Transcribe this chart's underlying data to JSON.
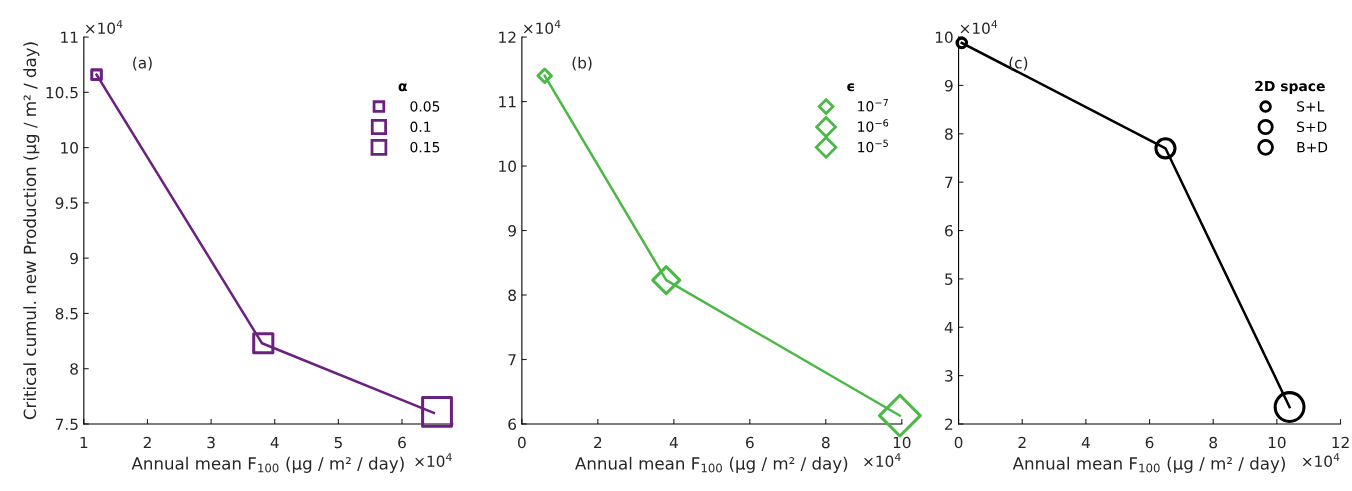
{
  "chart_data": [
    {
      "type": "line",
      "xlabel": "Annual mean F$_{100}$ (μg / m² / day)",
      "ylabel": "Critical cumul. new Production (μg / m² / day)",
      "legend_title": "α",
      "legend": "top right",
      "annotations": [
        "(a)",
        "×10$^{4}$",
        "×10$^{4}$"
      ],
      "xlim": [
        1,
        6.8
      ],
      "xticks": [
        1,
        2,
        3,
        4,
        5,
        6
      ],
      "ylim": [
        7.5,
        11
      ],
      "yticks": [
        7.5,
        8,
        8.5,
        9,
        9.5,
        10,
        10.5,
        11
      ],
      "series": [
        {
          "color": "#6b2180",
          "x": [
            1.2,
            3.8,
            6.5
          ],
          "values": [
            10.66,
            8.23,
            7.6
          ]
        },
        {
          "type": "bubble",
          "name": "0.05",
          "color": "#6b2180",
          "marker": "square",
          "x": [
            1.2
          ],
          "values": [
            10.66
          ],
          "sizes": [
            0.11
          ]
        },
        {
          "type": "bubble",
          "name": "0.1",
          "color": "#6b2180",
          "marker": "square",
          "x": [
            3.82
          ],
          "values": [
            8.23
          ],
          "sizes": [
            0.44
          ]
        },
        {
          "type": "bubble",
          "name": "0.15",
          "color": "#6b2180",
          "marker": "square",
          "x": [
            6.55
          ],
          "values": [
            7.61
          ],
          "sizes": [
            1
          ]
        }
      ]
    },
    {
      "type": "line",
      "xlabel": "Annual mean F$_{100}$ (μg / m² / day)",
      "legend_title": "ϵ",
      "legend": "top right",
      "annotations": [
        "(b)",
        "×10$^{4}$",
        "×10$^{4}$"
      ],
      "xlim": [
        0,
        10
      ],
      "xticks": [
        0,
        2,
        4,
        6,
        8,
        10
      ],
      "ylim": [
        6,
        12
      ],
      "yticks": [
        6,
        7,
        8,
        9,
        10,
        11,
        12
      ],
      "series": [
        {
          "color": "#4cb848",
          "x": [
            0.6,
            3.8,
            9.95
          ],
          "values": [
            11.4,
            8.23,
            6.13
          ]
        },
        {
          "type": "bubble",
          "name": "10$^{−7}$",
          "color": "#4cb848",
          "marker": "diamond",
          "x": [
            0.6
          ],
          "values": [
            11.4
          ],
          "sizes": [
            0.11
          ]
        },
        {
          "type": "bubble",
          "name": "10$^{−6}$",
          "color": "#4cb848",
          "marker": "diamond",
          "x": [
            3.8
          ],
          "values": [
            8.23
          ],
          "sizes": [
            0.44
          ]
        },
        {
          "type": "bubble",
          "name": "10$^{−5}$",
          "color": "#4cb848",
          "marker": "diamond",
          "x": [
            9.95
          ],
          "values": [
            6.13
          ],
          "sizes": [
            1
          ]
        }
      ]
    },
    {
      "type": "line",
      "xlabel": "Annual mean F$_{100}$ (μg / m² / day)",
      "legend_title": "2D space",
      "legend": "top right",
      "annotations": [
        "(c)",
        "×10$^{4}$",
        "×10$^{4}$"
      ],
      "xlim": [
        0,
        12
      ],
      "xticks": [
        0,
        2,
        4,
        6,
        8,
        10,
        12
      ],
      "ylim": [
        2,
        10
      ],
      "yticks": [
        2,
        3,
        4,
        5,
        6,
        7,
        8,
        9,
        10
      ],
      "series": [
        {
          "color": "#000000",
          "x": [
            0.1,
            6.5,
            10.4
          ],
          "values": [
            9.88,
            7.7,
            2.35
          ]
        },
        {
          "type": "bubble",
          "name": "S+L",
          "color": "#000000",
          "marker": "circle",
          "x": [
            0.1
          ],
          "values": [
            9.88
          ],
          "sizes": [
            0.11
          ]
        },
        {
          "type": "bubble",
          "name": "S+D",
          "color": "#000000",
          "marker": "circle",
          "x": [
            6.5
          ],
          "values": [
            7.7
          ],
          "sizes": [
            0.44
          ]
        },
        {
          "type": "bubble",
          "name": "B+D",
          "color": "#000000",
          "marker": "circle",
          "x": [
            10.4
          ],
          "values": [
            2.35
          ],
          "sizes": [
            1
          ]
        }
      ]
    }
  ]
}
